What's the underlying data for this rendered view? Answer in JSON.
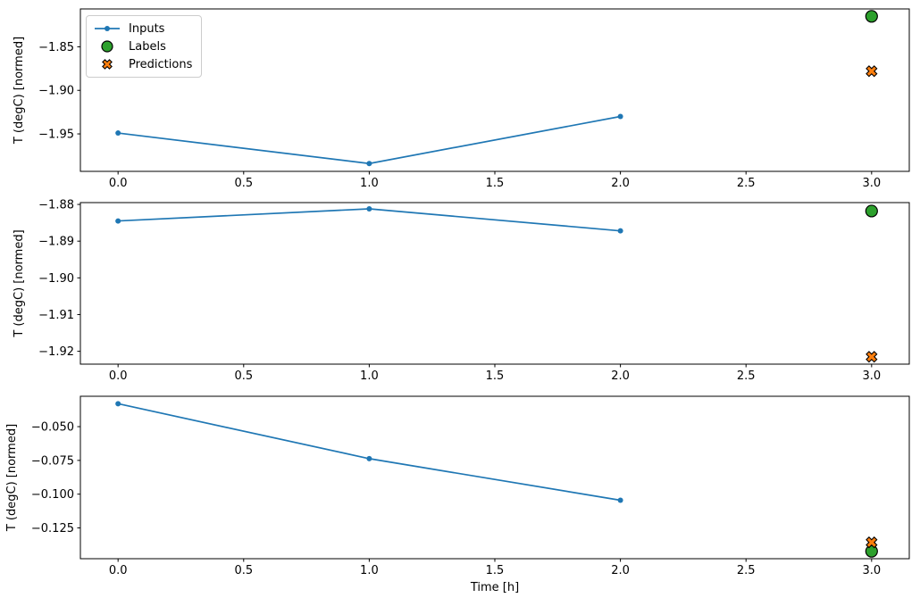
{
  "figure": {
    "background": "#ffffff"
  },
  "legend": {
    "position": "top-left",
    "border_color": "#cccccc",
    "items": [
      {
        "label": "Inputs",
        "marker": "line-dot",
        "color": "#1f77b4",
        "edge_color": "#1f77b4"
      },
      {
        "label": "Labels",
        "marker": "circle",
        "color": "#2ca02c",
        "edge_color": "#000000"
      },
      {
        "label": "Predictions",
        "marker": "x-cross",
        "color": "#ff7f0e",
        "edge_color": "#000000"
      }
    ]
  },
  "chart_data": [
    {
      "type": "line",
      "subplot": 1,
      "title": "",
      "xlabel": "",
      "ylabel": "T (degC) [normed]",
      "grid": false,
      "xlim": [
        -0.15,
        3.15
      ],
      "ylim": [
        -1.993,
        -1.8065
      ],
      "xtick_values": [
        0.0,
        0.5,
        1.0,
        1.5,
        2.0,
        2.5,
        3.0
      ],
      "xtick_labels": [
        "0.0",
        "0.5",
        "1.0",
        "1.5",
        "2.0",
        "2.5",
        "3.0"
      ],
      "ytick_values": [
        -1.85,
        -1.9,
        -1.95
      ],
      "ytick_labels": [
        "−1.85",
        "−1.90",
        "−1.95"
      ],
      "series": [
        {
          "name": "Inputs",
          "type": "line",
          "color": "#1f77b4",
          "x": [
            0,
            1,
            2
          ],
          "y": [
            -1.949,
            -1.984,
            -1.93
          ]
        },
        {
          "name": "Labels",
          "type": "scatter-circle",
          "color": "#2ca02c",
          "x": [
            3
          ],
          "y": [
            -1.815
          ]
        },
        {
          "name": "Predictions",
          "type": "scatter-x",
          "color": "#ff7f0e",
          "x": [
            3
          ],
          "y": [
            -1.878
          ]
        }
      ]
    },
    {
      "type": "line",
      "subplot": 2,
      "title": "",
      "xlabel": "",
      "ylabel": "T (degC) [normed]",
      "grid": false,
      "xlim": [
        -0.15,
        3.15
      ],
      "ylim": [
        -1.9235,
        -1.8795
      ],
      "xtick_values": [
        0.0,
        0.5,
        1.0,
        1.5,
        2.0,
        2.5,
        3.0
      ],
      "xtick_labels": [
        "0.0",
        "0.5",
        "1.0",
        "1.5",
        "2.0",
        "2.5",
        "3.0"
      ],
      "ytick_values": [
        -1.88,
        -1.89,
        -1.9,
        -1.91,
        -1.92
      ],
      "ytick_labels": [
        "−1.88",
        "−1.89",
        "−1.90",
        "−1.91",
        "−1.92"
      ],
      "series": [
        {
          "name": "Inputs",
          "type": "line",
          "color": "#1f77b4",
          "x": [
            0,
            1,
            2
          ],
          "y": [
            -1.8845,
            -1.8812,
            -1.8872
          ]
        },
        {
          "name": "Labels",
          "type": "scatter-circle",
          "color": "#2ca02c",
          "x": [
            3
          ],
          "y": [
            -1.8818
          ]
        },
        {
          "name": "Predictions",
          "type": "scatter-x",
          "color": "#ff7f0e",
          "x": [
            3
          ],
          "y": [
            -1.9215
          ]
        }
      ]
    },
    {
      "type": "line",
      "subplot": 3,
      "title": "",
      "xlabel": "Time [h]",
      "ylabel": "T (degC) [normed]",
      "grid": false,
      "xlim": [
        -0.15,
        3.15
      ],
      "ylim": [
        -0.1478,
        -0.0275
      ],
      "xtick_values": [
        0.0,
        0.5,
        1.0,
        1.5,
        2.0,
        2.5,
        3.0
      ],
      "xtick_labels": [
        "0.0",
        "0.5",
        "1.0",
        "1.5",
        "2.0",
        "2.5",
        "3.0"
      ],
      "ytick_values": [
        -0.05,
        -0.075,
        -0.1,
        -0.125
      ],
      "ytick_labels": [
        "−0.050",
        "−0.075",
        "−0.100",
        "−0.125"
      ],
      "series": [
        {
          "name": "Inputs",
          "type": "line",
          "color": "#1f77b4",
          "x": [
            0,
            1,
            2
          ],
          "y": [
            -0.033,
            -0.0737,
            -0.1045
          ]
        },
        {
          "name": "Labels",
          "type": "scatter-circle",
          "color": "#2ca02c",
          "x": [
            3
          ],
          "y": [
            -0.1423
          ]
        },
        {
          "name": "Predictions",
          "type": "scatter-x",
          "color": "#ff7f0e",
          "x": [
            3
          ],
          "y": [
            -0.1357
          ]
        }
      ]
    }
  ]
}
